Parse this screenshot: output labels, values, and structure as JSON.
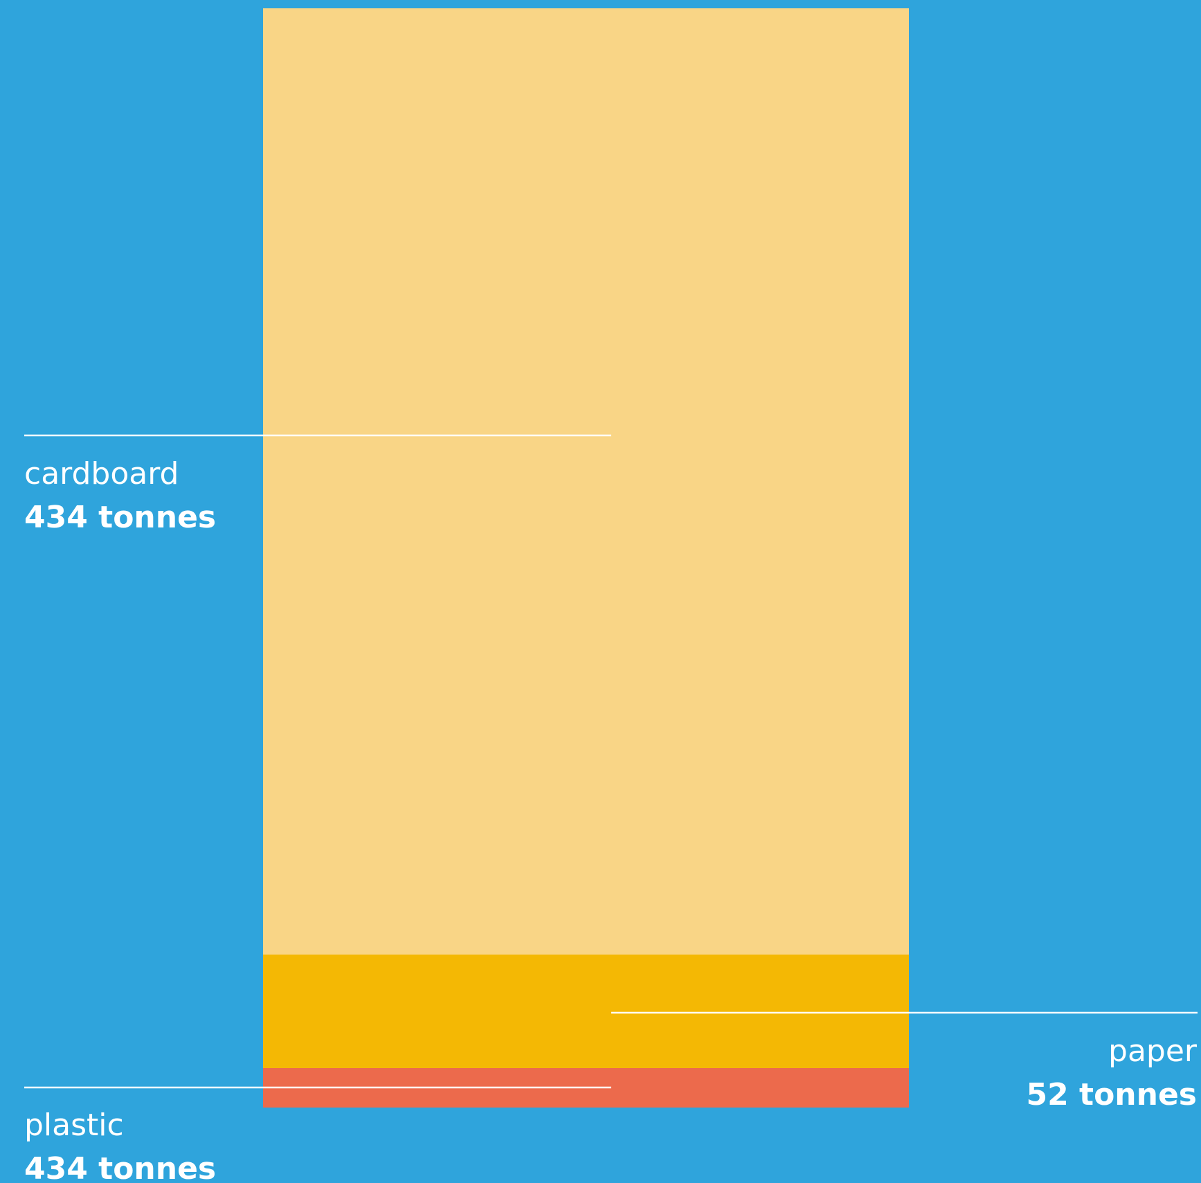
{
  "colors": {
    "background": "#2fa4dc",
    "leader_line": "#ffffff",
    "label_text": "#ffffff"
  },
  "chart_data": {
    "type": "bar",
    "orientation": "stacked-vertical",
    "title": "",
    "xlabel": "",
    "ylabel": "",
    "grid": false,
    "unit": "tonnes",
    "segments_bottom_to_top": [
      {
        "name": "plastic",
        "value": 434,
        "label_value": "434 tonnes",
        "color": "#ec6a4c",
        "label_side": "left"
      },
      {
        "name": "paper",
        "value": 52,
        "label_value": "52 tonnes",
        "color": "#f4b804",
        "label_side": "right"
      },
      {
        "name": "cardboard",
        "value": 434,
        "label_value": "434 tonnes",
        "color": "#f9d586",
        "label_side": "left"
      }
    ]
  }
}
